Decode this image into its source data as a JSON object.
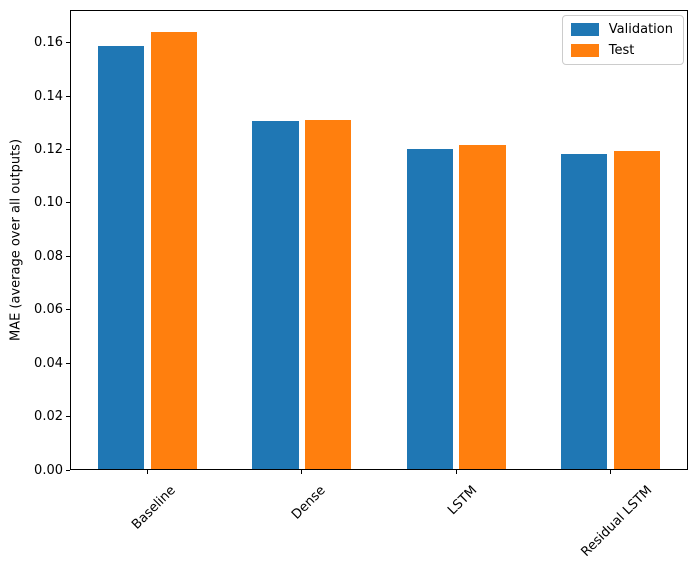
{
  "chart_data": {
    "type": "bar",
    "title": "",
    "categories": [
      "Baseline",
      "Dense",
      "LSTM",
      "Residual LSTM"
    ],
    "series": [
      {
        "name": "Validation",
        "color": "#1f77b4",
        "values": [
          0.1589,
          0.1307,
          0.1201,
          0.1184
        ]
      },
      {
        "name": "Test",
        "color": "#ff7f0e",
        "values": [
          0.1638,
          0.1309,
          0.1217,
          0.1193
        ]
      }
    ],
    "xlabel": "",
    "ylabel": "MAE (average over all outputs)",
    "ylim": [
      0,
      0.1722
    ],
    "xlim": [
      -0.502,
      3.502
    ],
    "yticks": [
      0.0,
      0.02,
      0.04,
      0.06,
      0.08,
      0.1,
      0.12,
      0.14,
      0.16
    ],
    "ytick_labels": [
      "0.00",
      "0.02",
      "0.04",
      "0.06",
      "0.08",
      "0.10",
      "0.12",
      "0.14",
      "0.16"
    ],
    "bar_width": 0.3,
    "bar_offset": 0.17,
    "xtick_rotation_deg": 45,
    "grid": false,
    "legend": {
      "position": "upper right",
      "entries": [
        "Validation",
        "Test"
      ]
    },
    "axis_color": "#000000",
    "legend_border_color": "#cccccc"
  }
}
